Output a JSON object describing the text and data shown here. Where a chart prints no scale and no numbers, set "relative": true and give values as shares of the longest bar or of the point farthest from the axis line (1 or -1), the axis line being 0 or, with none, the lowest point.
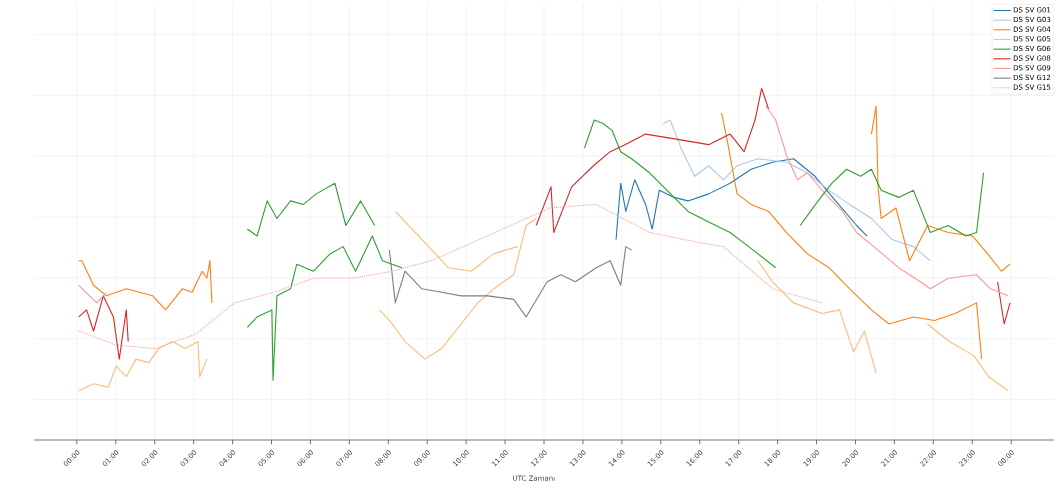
{
  "chart_data": {
    "type": "line",
    "relative": true,
    "xlabel": "UTC Zamanı",
    "grid": true,
    "legend": "top right",
    "marker": "none",
    "xlim": [
      -1.1,
      25.1
    ],
    "xticks": [
      {
        "value": 0,
        "label": "00:00"
      },
      {
        "value": 1,
        "label": "01:00"
      },
      {
        "value": 2,
        "label": "02:00"
      },
      {
        "value": 3,
        "label": "03:00"
      },
      {
        "value": 4,
        "label": "04:00"
      },
      {
        "value": 5,
        "label": "05:00"
      },
      {
        "value": 6,
        "label": "06:00"
      },
      {
        "value": 7,
        "label": "07:00"
      },
      {
        "value": 8,
        "label": "08:00"
      },
      {
        "value": 9,
        "label": "09:00"
      },
      {
        "value": 10,
        "label": "10:00"
      },
      {
        "value": 11,
        "label": "11:00"
      },
      {
        "value": 12,
        "label": "12:00"
      },
      {
        "value": 13,
        "label": "13:00"
      },
      {
        "value": 14,
        "label": "14:00"
      },
      {
        "value": 15,
        "label": "15:00"
      },
      {
        "value": 16,
        "label": "16:00"
      },
      {
        "value": 17,
        "label": "17:00"
      },
      {
        "value": 18,
        "label": "18:00"
      },
      {
        "value": 19,
        "label": "19:00"
      },
      {
        "value": 20,
        "label": "20:00"
      },
      {
        "value": 21,
        "label": "21:00"
      },
      {
        "value": 22,
        "label": "22:00"
      },
      {
        "value": 23,
        "label": "23:00"
      },
      {
        "value": 24,
        "label": "00:00"
      }
    ],
    "series": [
      {
        "name": "DS SV G01",
        "color": "#1f77b4",
        "x": [
          13.85,
          13.97,
          14.1,
          14.33,
          14.61,
          14.78,
          14.96,
          15.34,
          15.7,
          16.23,
          16.78,
          17.32,
          17.87,
          18.41,
          18.96,
          19.49,
          20.03,
          20.3
        ],
        "values": [
          0.57,
          0.73,
          0.65,
          0.74,
          0.67,
          0.6,
          0.71,
          0.69,
          0.68,
          0.7,
          0.73,
          0.77,
          0.79,
          0.8,
          0.75,
          0.68,
          0.61,
          0.58
        ]
      },
      {
        "name": "DS SV G03",
        "color": "#aec7e8",
        "x": [
          15.06,
          15.24,
          15.52,
          15.87,
          16.23,
          16.61,
          16.96,
          17.49,
          18.23,
          18.76,
          19.32,
          19.85,
          20.41,
          20.94,
          21.49,
          21.92
        ],
        "values": [
          0.9,
          0.91,
          0.83,
          0.75,
          0.78,
          0.74,
          0.78,
          0.8,
          0.79,
          0.76,
          0.71,
          0.67,
          0.63,
          0.57,
          0.55,
          0.51
        ]
      },
      {
        "name": "DS SV G04",
        "color": "#ff7f0e",
        "x": [
          0.05,
          0.13,
          0.43,
          0.76,
          1.27,
          1.95,
          2.28,
          2.71,
          2.96,
          3.22,
          3.34,
          3.42,
          3.47,
          10,
          16.56,
          16.71,
          16.86,
          16.96,
          17.32,
          17.77,
          18.23,
          18.76,
          19.32,
          19.85,
          20.41,
          20.86,
          21.49,
          22.03,
          22.56,
          23.11,
          23.24
        ],
        "values": [
          0.51,
          0.51,
          0.44,
          0.41,
          0.43,
          0.41,
          0.37,
          0.43,
          0.42,
          0.48,
          0.46,
          0.51,
          0.39,
          null,
          0.93,
          0.85,
          0.76,
          0.7,
          0.67,
          0.65,
          0.59,
          0.53,
          0.49,
          0.43,
          0.37,
          0.33,
          0.35,
          0.34,
          0.36,
          0.39,
          0.23
        ]
      },
      {
        "name": "DS SV G05",
        "color": "#ffbb78",
        "x": [
          0.05,
          0.43,
          0.81,
          1.01,
          1.27,
          1.52,
          1.85,
          2.1,
          2.46,
          2.78,
          3.11,
          3.16,
          3.34,
          5.5,
          7.77,
          8.03,
          8.43,
          8.94,
          9.37,
          9.8,
          10.3,
          10.71,
          11.22,
          11.54,
          11.8
        ],
        "values": [
          0.14,
          0.16,
          0.15,
          0.21,
          0.18,
          0.23,
          0.22,
          0.26,
          0.28,
          0.26,
          0.28,
          0.18,
          0.23,
          null,
          0.37,
          0.34,
          0.28,
          0.23,
          0.26,
          0.32,
          0.39,
          0.43,
          0.47,
          0.61,
          0.63
        ]
      },
      {
        "name": "DS SV G06",
        "color": "#2ca02c",
        "x": [
          4.38,
          4.63,
          5.01,
          5.04,
          5.14,
          5.49,
          5.65,
          6.08,
          6.51,
          6.84,
          7.16,
          7.59,
          7.85,
          8.35,
          10.5,
          13.04,
          13.29,
          13.52,
          13.75,
          13.97,
          14.25,
          14.71,
          15.16,
          15.7,
          16.23,
          16.78,
          17.14,
          17.49,
          17.95
        ],
        "values": [
          0.32,
          0.35,
          0.37,
          0.17,
          0.41,
          0.43,
          0.5,
          0.48,
          0.53,
          0.55,
          0.48,
          0.58,
          0.51,
          0.49,
          null,
          0.83,
          0.91,
          0.9,
          0.88,
          0.82,
          0.8,
          0.76,
          0.71,
          0.65,
          0.62,
          0.59,
          0.56,
          0.53,
          0.49
        ]
      },
      {
        "name": "DS SV G08",
        "color": "#d62728",
        "x": [
          0.05,
          0.25,
          0.43,
          0.68,
          0.94,
          1.09,
          1.27,
          1.32,
          6,
          11.8,
          12.18,
          12.25,
          12.71,
          13.27,
          13.7,
          14.08,
          14.61,
          15.16,
          15.7,
          16.23,
          16.78,
          17.14,
          17.42,
          17.59,
          17.77,
          20,
          23.65,
          23.82,
          23.97
        ],
        "values": [
          0.35,
          0.37,
          0.31,
          0.41,
          0.35,
          0.23,
          0.37,
          0.28,
          null,
          0.61,
          0.72,
          0.59,
          0.72,
          0.78,
          0.82,
          0.84,
          0.87,
          0.86,
          0.85,
          0.84,
          0.87,
          0.82,
          0.91,
          1,
          0.94,
          null,
          0.45,
          0.33,
          0.39
        ]
      },
      {
        "name": "DS SV G09",
        "color": "#ff9896",
        "x": [
          0.05,
          0.51,
          0.76,
          9,
          17.7,
          17.95,
          18.23,
          18.51,
          18.76,
          19.22,
          19.67,
          20.03,
          20.58,
          21.11,
          21.67,
          21.92,
          22.38,
          23.11,
          23.47,
          23.92
        ],
        "values": [
          0.44,
          0.39,
          0.42,
          null,
          0.95,
          0.91,
          0.81,
          0.74,
          0.76,
          0.7,
          0.65,
          0.59,
          0.54,
          0.49,
          0.45,
          0.43,
          0.46,
          0.47,
          0.43,
          0.41
        ]
      },
      {
        "name": "DS SV G12",
        "color": "#7f7f7f",
        "x": [
          8.03,
          8.18,
          8.43,
          8.86,
          9.37,
          9.87,
          10.56,
          11.22,
          11.54,
          12.08,
          12.43,
          12.81,
          13.34,
          13.7,
          13.97,
          14.1,
          14.25
        ],
        "values": [
          0.54,
          0.39,
          0.48,
          0.43,
          0.42,
          0.41,
          0.41,
          0.4,
          0.35,
          0.45,
          0.47,
          0.45,
          0.49,
          0.51,
          0.44,
          0.55,
          0.54
        ]
      },
      {
        "name": "DS SV G15",
        "color": "#f0a8a0",
        "line_style": "dotted",
        "x": [
          0.05,
          1.01,
          2.03,
          3.04,
          4.05,
          5.06,
          6.08,
          7.09,
          8.1,
          9.11,
          10.13,
          11.14,
          12.15,
          13.34,
          14.71,
          16.05,
          16.61,
          17.87,
          19.14
        ],
        "values": [
          0.31,
          0.27,
          0.26,
          0.3,
          0.39,
          0.42,
          0.46,
          0.46,
          0.48,
          0.51,
          0.56,
          0.61,
          0.66,
          0.67,
          0.59,
          0.56,
          0.55,
          0.43,
          0.39
        ]
      },
      {
        "color": "#ffbb78",
        "x": [
          8.18,
          8.61,
          9.04,
          9.54,
          10.13,
          10.71,
          11.32,
          14,
          17.49,
          17.87,
          18.41,
          19.14,
          19.59,
          19.95,
          20.23,
          20.53,
          21.2,
          21.85,
          22.41,
          23.04,
          23.42,
          23.92
        ],
        "values": [
          0.65,
          0.6,
          0.55,
          0.49,
          0.48,
          0.53,
          0.55,
          null,
          0.51,
          0.45,
          0.39,
          0.36,
          0.37,
          0.25,
          0.31,
          0.19,
          null,
          0.33,
          0.28,
          0.24,
          0.18,
          0.14
        ]
      },
      {
        "color": "#ff7f0e",
        "x": [
          20.41,
          20.53,
          20.58,
          20.66,
          21.04,
          21.39,
          21.67,
          21.85,
          22.38,
          23.01,
          23.39,
          23.75,
          23.97
        ],
        "values": [
          0.87,
          0.95,
          0.72,
          0.63,
          0.66,
          0.51,
          0.57,
          0.61,
          0.59,
          0.58,
          0.53,
          0.48,
          0.5
        ]
      },
      {
        "color": "#2ca02c",
        "x": [
          4.38,
          4.63,
          4.89,
          5.14,
          5.49,
          5.82,
          6.15,
          6.63,
          6.91,
          7.29,
          7.65,
          12,
          18.58,
          19.04,
          19.39,
          19.77,
          20.13,
          20.41,
          20.66,
          21.11,
          21.49,
          21.92,
          22.38,
          22.84,
          23.11,
          23.29
        ],
        "values": [
          0.6,
          0.58,
          0.68,
          0.63,
          0.68,
          0.67,
          0.7,
          0.73,
          0.61,
          0.68,
          0.61,
          null,
          0.61,
          0.68,
          0.73,
          0.77,
          0.75,
          0.77,
          0.71,
          0.69,
          0.71,
          0.59,
          0.61,
          0.58,
          0.59,
          0.76
        ]
      }
    ]
  }
}
